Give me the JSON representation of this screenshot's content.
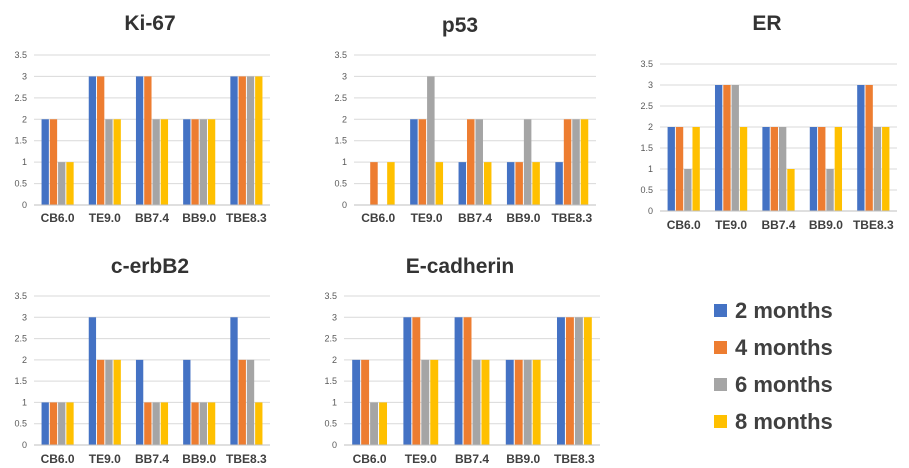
{
  "legend": {
    "items": [
      {
        "label": "2 months",
        "color": "#4472C4"
      },
      {
        "label": "4 months",
        "color": "#ED7D31"
      },
      {
        "label": "6 months",
        "color": "#A5A5A5"
      },
      {
        "label": "8 months",
        "color": "#FFC000"
      }
    ]
  },
  "chart_data": [
    {
      "type": "bar",
      "title": "Ki-67",
      "categories": [
        "CB6.0",
        "TE9.0",
        "BB7.4",
        "BB9.0",
        "TBE8.3"
      ],
      "ylim": [
        0,
        3.5
      ],
      "yticks": [
        "0",
        "0.5",
        "1",
        "1.5",
        "2",
        "2.5",
        "3",
        "3.5"
      ],
      "series": [
        {
          "name": "2 months",
          "values": [
            2,
            3,
            3,
            2,
            3
          ]
        },
        {
          "name": "4 months",
          "values": [
            2,
            3,
            3,
            2,
            3
          ]
        },
        {
          "name": "6 months",
          "values": [
            1,
            2,
            2,
            2,
            3
          ]
        },
        {
          "name": "8 months",
          "values": [
            1,
            2,
            2,
            2,
            3
          ]
        }
      ]
    },
    {
      "type": "bar",
      "title": "p53",
      "categories": [
        "CB6.0",
        "TE9.0",
        "BB7.4",
        "BB9.0",
        "TBE8.3"
      ],
      "ylim": [
        0,
        3.5
      ],
      "yticks": [
        "0",
        "0.5",
        "1",
        "1.5",
        "2",
        "2.5",
        "3",
        "3.5"
      ],
      "series": [
        {
          "name": "2 months",
          "values": [
            0,
            2,
            1,
            1,
            1
          ]
        },
        {
          "name": "4 months",
          "values": [
            1,
            2,
            2,
            1,
            2
          ]
        },
        {
          "name": "6 months",
          "values": [
            0,
            3,
            2,
            2,
            2
          ]
        },
        {
          "name": "8 months",
          "values": [
            1,
            1,
            1,
            1,
            2
          ]
        }
      ]
    },
    {
      "type": "bar",
      "title": "ER",
      "categories": [
        "CB6.0",
        "TE9.0",
        "BB7.4",
        "BB9.0",
        "TBE8.3"
      ],
      "ylim": [
        0,
        3.5
      ],
      "yticks": [
        "0",
        "0.5",
        "1",
        "1.5",
        "2",
        "2.5",
        "3",
        "3.5"
      ],
      "series": [
        {
          "name": "2 months",
          "values": [
            2,
            3,
            2,
            2,
            3
          ]
        },
        {
          "name": "4 months",
          "values": [
            2,
            3,
            2,
            2,
            3
          ]
        },
        {
          "name": "6 months",
          "values": [
            1,
            3,
            2,
            1,
            2
          ]
        },
        {
          "name": "8 months",
          "values": [
            2,
            2,
            1,
            2,
            2
          ]
        }
      ]
    },
    {
      "type": "bar",
      "title": "c-erbB2",
      "categories": [
        "CB6.0",
        "TE9.0",
        "BB7.4",
        "BB9.0",
        "TBE8.3"
      ],
      "ylim": [
        0,
        3.5
      ],
      "yticks": [
        "0",
        "0.5",
        "1",
        "1.5",
        "2",
        "2.5",
        "3",
        "3.5"
      ],
      "series": [
        {
          "name": "2 months",
          "values": [
            1,
            3,
            2,
            2,
            3
          ]
        },
        {
          "name": "4 months",
          "values": [
            1,
            2,
            1,
            1,
            2
          ]
        },
        {
          "name": "6 months",
          "values": [
            1,
            2,
            1,
            1,
            2
          ]
        },
        {
          "name": "8 months",
          "values": [
            1,
            2,
            1,
            1,
            1
          ]
        }
      ]
    },
    {
      "type": "bar",
      "title": "E-cadherin",
      "categories": [
        "CB6.0",
        "TE9.0",
        "BB7.4",
        "BB9.0",
        "TBE8.3"
      ],
      "ylim": [
        0,
        3.5
      ],
      "yticks": [
        "0",
        "0.5",
        "1",
        "1.5",
        "2",
        "2.5",
        "3",
        "3.5"
      ],
      "series": [
        {
          "name": "2 months",
          "values": [
            2,
            3,
            3,
            2,
            3
          ]
        },
        {
          "name": "4 months",
          "values": [
            2,
            3,
            3,
            2,
            3
          ]
        },
        {
          "name": "6 months",
          "values": [
            1,
            2,
            2,
            2,
            3
          ]
        },
        {
          "name": "8 months",
          "values": [
            1,
            2,
            2,
            2,
            3
          ]
        }
      ]
    }
  ]
}
